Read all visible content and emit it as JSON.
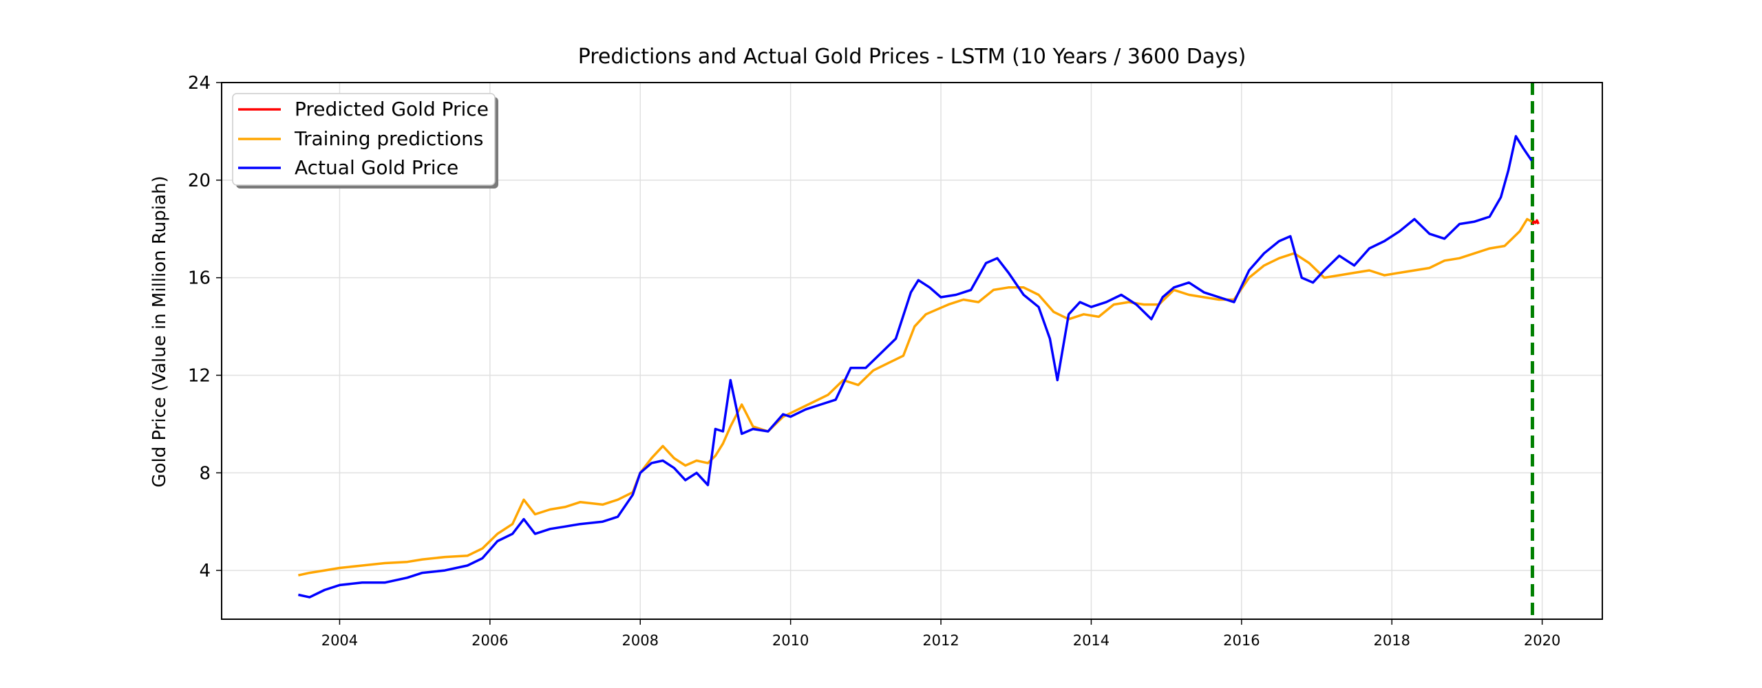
{
  "chart_data": {
    "type": "line",
    "title": "Predictions and Actual Gold Prices - LSTM (10 Years / 3600 Days)",
    "xlabel": "",
    "ylabel": "Gold Price (Value in Million Rupiah)",
    "xlim": [
      2002.43,
      2020.8
    ],
    "ylim": [
      2,
      24
    ],
    "xticks": [
      "2004",
      "2006",
      "2008",
      "2010",
      "2012",
      "2014",
      "2016",
      "2018",
      "2020"
    ],
    "yticks": [
      "4",
      "8",
      "12",
      "16",
      "20",
      "24"
    ],
    "grid": true,
    "legend_position": "top-left",
    "split_date": 2019.87,
    "series": [
      {
        "name": "Predicted Gold Price",
        "color": "#ff0000",
        "x": [
          2019.87,
          2019.89,
          2019.91,
          2019.93,
          2019.95
        ],
        "y": [
          18.2,
          18.3,
          18.25,
          18.35,
          18.2
        ]
      },
      {
        "name": "Training predictions",
        "color": "#ffa500",
        "x": [
          2003.45,
          2003.6,
          2003.8,
          2004.0,
          2004.3,
          2004.6,
          2004.9,
          2005.1,
          2005.4,
          2005.7,
          2005.9,
          2006.1,
          2006.3,
          2006.45,
          2006.6,
          2006.8,
          2007.0,
          2007.2,
          2007.5,
          2007.7,
          2007.9,
          2008.0,
          2008.15,
          2008.3,
          2008.45,
          2008.6,
          2008.75,
          2008.9,
          2009.0,
          2009.1,
          2009.2,
          2009.35,
          2009.5,
          2009.7,
          2009.9,
          2010.1,
          2010.3,
          2010.5,
          2010.7,
          2010.9,
          2011.1,
          2011.3,
          2011.5,
          2011.65,
          2011.8,
          2011.95,
          2012.1,
          2012.3,
          2012.5,
          2012.7,
          2012.9,
          2013.1,
          2013.3,
          2013.5,
          2013.7,
          2013.9,
          2014.1,
          2014.3,
          2014.5,
          2014.7,
          2014.9,
          2015.1,
          2015.3,
          2015.5,
          2015.7,
          2015.9,
          2016.1,
          2016.3,
          2016.5,
          2016.7,
          2016.9,
          2017.1,
          2017.3,
          2017.5,
          2017.7,
          2017.9,
          2018.1,
          2018.3,
          2018.5,
          2018.7,
          2018.9,
          2019.1,
          2019.3,
          2019.5,
          2019.6,
          2019.7,
          2019.8,
          2019.86
        ],
        "y": [
          3.8,
          3.9,
          4.0,
          4.1,
          4.2,
          4.3,
          4.35,
          4.45,
          4.55,
          4.6,
          4.9,
          5.5,
          5.9,
          6.9,
          6.3,
          6.5,
          6.6,
          6.8,
          6.7,
          6.9,
          7.2,
          8.0,
          8.6,
          9.1,
          8.6,
          8.3,
          8.5,
          8.4,
          8.7,
          9.2,
          9.9,
          10.8,
          9.9,
          9.7,
          10.3,
          10.6,
          10.9,
          11.2,
          11.8,
          11.6,
          12.2,
          12.5,
          12.8,
          14.0,
          14.5,
          14.7,
          14.9,
          15.1,
          15.0,
          15.5,
          15.6,
          15.6,
          15.3,
          14.6,
          14.3,
          14.5,
          14.4,
          14.9,
          15.0,
          14.9,
          14.9,
          15.5,
          15.3,
          15.2,
          15.1,
          15.1,
          16.0,
          16.5,
          16.8,
          17.0,
          16.6,
          16.0,
          16.1,
          16.2,
          16.3,
          16.1,
          16.2,
          16.3,
          16.4,
          16.7,
          16.8,
          17.0,
          17.2,
          17.3,
          17.6,
          17.9,
          18.4,
          18.3
        ]
      },
      {
        "name": "Actual Gold Price",
        "color": "#0000ff",
        "x": [
          2003.45,
          2003.6,
          2003.8,
          2004.0,
          2004.3,
          2004.6,
          2004.9,
          2005.1,
          2005.4,
          2005.7,
          2005.9,
          2006.1,
          2006.3,
          2006.45,
          2006.6,
          2006.8,
          2007.0,
          2007.2,
          2007.5,
          2007.7,
          2007.9,
          2008.0,
          2008.15,
          2008.3,
          2008.45,
          2008.6,
          2008.75,
          2008.9,
          2009.0,
          2009.1,
          2009.2,
          2009.35,
          2009.5,
          2009.7,
          2009.9,
          2010.0,
          2010.2,
          2010.4,
          2010.6,
          2010.8,
          2011.0,
          2011.2,
          2011.4,
          2011.6,
          2011.7,
          2011.85,
          2012.0,
          2012.2,
          2012.4,
          2012.6,
          2012.75,
          2012.9,
          2013.1,
          2013.3,
          2013.45,
          2013.55,
          2013.7,
          2013.85,
          2014.0,
          2014.2,
          2014.4,
          2014.6,
          2014.8,
          2014.95,
          2015.1,
          2015.3,
          2015.5,
          2015.7,
          2015.9,
          2016.1,
          2016.3,
          2016.5,
          2016.65,
          2016.8,
          2016.95,
          2017.1,
          2017.3,
          2017.5,
          2017.7,
          2017.9,
          2018.1,
          2018.3,
          2018.5,
          2018.7,
          2018.9,
          2019.1,
          2019.3,
          2019.45,
          2019.55,
          2019.65,
          2019.75,
          2019.86
        ],
        "y": [
          3.0,
          2.9,
          3.2,
          3.4,
          3.5,
          3.5,
          3.7,
          3.9,
          4.0,
          4.2,
          4.5,
          5.2,
          5.5,
          6.1,
          5.5,
          5.7,
          5.8,
          5.9,
          6.0,
          6.2,
          7.1,
          8.0,
          8.4,
          8.5,
          8.2,
          7.7,
          8.0,
          7.5,
          9.8,
          9.7,
          11.8,
          9.6,
          9.8,
          9.7,
          10.4,
          10.3,
          10.6,
          10.8,
          11.0,
          12.3,
          12.3,
          12.9,
          13.5,
          15.4,
          15.9,
          15.6,
          15.2,
          15.3,
          15.5,
          16.6,
          16.8,
          16.2,
          15.3,
          14.8,
          13.5,
          11.8,
          14.5,
          15.0,
          14.8,
          15.0,
          15.3,
          14.9,
          14.3,
          15.2,
          15.6,
          15.8,
          15.4,
          15.2,
          15.0,
          16.3,
          17.0,
          17.5,
          17.7,
          16.0,
          15.8,
          16.3,
          16.9,
          16.5,
          17.2,
          17.5,
          17.9,
          18.4,
          17.8,
          17.6,
          18.2,
          18.3,
          18.5,
          19.3,
          20.4,
          21.8,
          21.3,
          20.8
        ]
      }
    ]
  }
}
